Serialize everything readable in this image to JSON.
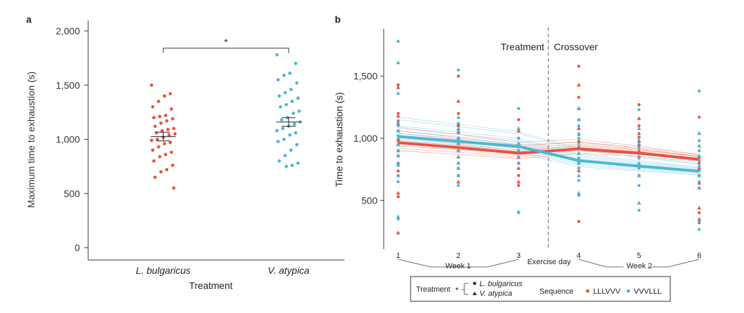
{
  "colors": {
    "red": "#e8533f",
    "blue": "#4bb8d6",
    "axis": "#333333",
    "grid": "#555555"
  },
  "panel_labels": {
    "a": "a",
    "b": "b"
  },
  "chart_data": [
    {
      "type": "scatter",
      "panel": "a",
      "title": "",
      "xlabel": "Treatment",
      "ylabel": "Maximum time to exhaustion (s)",
      "ylim": [
        0,
        2000
      ],
      "yticks": [
        "0",
        "500",
        "1,000",
        "1,500",
        "2,000"
      ],
      "ytick_values": [
        0,
        500,
        1000,
        1500,
        2000
      ],
      "categories": [
        "L. bulgaricus",
        "V. atypica"
      ],
      "significance": "*",
      "series": [
        {
          "category": "L. bulgaricus",
          "color": "red",
          "mean": 1025,
          "sem": [
            985,
            1065
          ],
          "values": [
            1500,
            1420,
            1400,
            1350,
            1300,
            1280,
            1220,
            1210,
            1200,
            1190,
            1170,
            1150,
            1120,
            1100,
            1090,
            1080,
            1060,
            1050,
            1040,
            1020,
            1000,
            990,
            970,
            960,
            930,
            900,
            880,
            860,
            840,
            800,
            760,
            720,
            700,
            650,
            550
          ]
        },
        {
          "category": "V. atypica",
          "color": "blue",
          "mean": 1160,
          "sem": [
            1120,
            1200
          ],
          "values": [
            1780,
            1700,
            1610,
            1590,
            1550,
            1520,
            1460,
            1430,
            1400,
            1380,
            1350,
            1320,
            1300,
            1260,
            1240,
            1200,
            1180,
            1160,
            1140,
            1120,
            1100,
            1080,
            1060,
            1040,
            1000,
            980,
            950,
            900,
            850,
            800,
            780,
            760,
            750
          ]
        }
      ]
    },
    {
      "type": "line",
      "panel": "b",
      "title": "",
      "xlabel": "Exercise day",
      "ylabel": "Time to exhaustion (s)",
      "x": [
        1,
        2,
        3,
        4,
        5,
        6
      ],
      "ylim": [
        200,
        1850
      ],
      "yticks": [
        "500",
        "1,000",
        "1,500"
      ],
      "ytick_values": [
        500,
        1000,
        1500
      ],
      "week_labels": [
        "Week 1",
        "Week 2"
      ],
      "annotations": [
        "Treatment",
        "Crossover"
      ],
      "legend": {
        "treatment_title": "Treatment",
        "treatment_star": "*",
        "treatment_items": [
          "L. bulgaricus",
          "V. atypica"
        ],
        "sequence_title": "Sequence",
        "sequence_items": [
          "LLLVVV",
          "VVVLLL"
        ],
        "placement": "bottom"
      },
      "series": [
        {
          "name": "LLLVVV",
          "color": "red",
          "values": [
            965,
            925,
            880,
            915,
            880,
            830
          ]
        },
        {
          "name": "VVVLLL",
          "color": "blue",
          "values": [
            1015,
            975,
            935,
            820,
            775,
            735
          ]
        }
      ],
      "individual_lines": {
        "red": {
          "day1": [
            900,
            920,
            940,
            955,
            970,
            985,
            1000,
            1020,
            1040,
            1060,
            1090
          ],
          "day3_to_day4_shift": 35
        },
        "blue": {
          "day1": [
            940,
            960,
            980,
            1000,
            1020,
            1040,
            1060,
            1080,
            1100,
            1150,
            1170
          ]
        }
      },
      "points": {
        "red": [
          {
            "x": 1,
            "y": [
              1430,
              1410,
              1200,
              1180,
              1140,
              1120,
              1060,
              1000,
              980,
              950,
              900,
              860,
              800,
              740,
              700,
              560,
              530,
              240
            ],
            "marker": "mixed"
          },
          {
            "x": 2,
            "y": [
              1500,
              1300,
              1200,
              1120,
              1100,
              1050,
              1000,
              960,
              900,
              850,
              800,
              760,
              700,
              650
            ],
            "marker": "mixed"
          },
          {
            "x": 3,
            "y": [
              1150,
              1060,
              1000,
              960,
              900,
              850,
              800,
              760,
              700,
              650,
              620
            ],
            "marker": "mixed"
          },
          {
            "x": 4,
            "y": [
              1580,
              1430,
              1330,
              1240,
              1150,
              1080,
              1030,
              980,
              930,
              880,
              800,
              740,
              330
            ],
            "marker": "mixed"
          },
          {
            "x": 5,
            "y": [
              1270,
              1160,
              1100,
              1040,
              1010,
              980,
              940,
              900,
              850,
              780,
              700,
              480
            ],
            "marker": "mixed"
          },
          {
            "x": 6,
            "y": [
              1170,
              1040,
              980,
              940,
              900,
              850,
              800,
              760,
              700,
              640,
              600,
              440,
              400,
              350,
              320
            ],
            "marker": "mixed"
          }
        ],
        "blue": [
          {
            "x": 1,
            "y": [
              1780,
              1610,
              1360,
              1140,
              1100,
              1060,
              1020,
              1000,
              950,
              900,
              860,
              800,
              780,
              700,
              650,
              370,
              350
            ],
            "marker": "mixed"
          },
          {
            "x": 2,
            "y": [
              1550,
              1170,
              1120,
              1080,
              1060,
              1000,
              960,
              900,
              850,
              800,
              760,
              700,
              620
            ],
            "marker": "mixed"
          },
          {
            "x": 3,
            "y": [
              1240,
              1080,
              1000,
              960,
              930,
              900,
              850,
              800,
              400,
              410
            ],
            "marker": "mixed"
          },
          {
            "x": 4,
            "y": [
              1240,
              1150,
              1100,
              1040,
              1000,
              960,
              920,
              880,
              840,
              800,
              760,
              700,
              660,
              560,
              540
            ],
            "marker": "mixed"
          },
          {
            "x": 5,
            "y": [
              1230,
              1080,
              1000,
              960,
              920,
              880,
              840,
              800,
              760,
              700,
              620,
              480,
              420
            ],
            "marker": "mixed"
          },
          {
            "x": 6,
            "y": [
              1380,
              1040,
              980,
              940,
              900,
              860,
              820,
              780,
              740,
              700,
              650,
              600,
              330,
              270
            ],
            "marker": "mixed"
          }
        ]
      }
    }
  ]
}
